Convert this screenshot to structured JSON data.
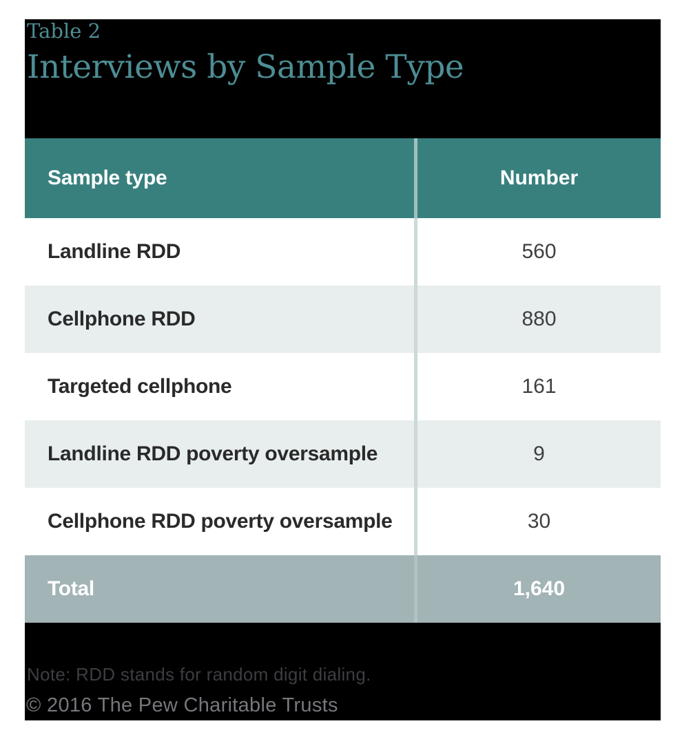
{
  "title": {
    "table_label": "Table 2",
    "heading": "Interviews by Sample Type"
  },
  "table": {
    "columns": {
      "sample_type": "Sample type",
      "number": "Number"
    },
    "rows": [
      {
        "label": "Landline RDD",
        "number": "560"
      },
      {
        "label": "Cellphone RDD",
        "number": "880"
      },
      {
        "label": "Targeted cellphone",
        "number": "161"
      },
      {
        "label": "Landline RDD poverty oversample",
        "number": "9"
      },
      {
        "label": "Cellphone RDD poverty oversample",
        "number": "30"
      }
    ],
    "total": {
      "label": "Total",
      "number": "1,640"
    }
  },
  "footer": {
    "note": "Note: RDD stands for random digit dialing.",
    "copyright": "© 2016 The Pew Charitable Trusts"
  },
  "colors": {
    "header_teal": "#38807e",
    "alt_row": "#e8eeee",
    "total_row": "#a2b4b5",
    "title_teal": "#4d8d94",
    "panel_background": "#000000",
    "column_divider": "#ccd9d9"
  },
  "chart_data": {
    "type": "table",
    "title": "Interviews by Sample Type",
    "table_number": "Table 2",
    "columns": [
      "Sample type",
      "Number"
    ],
    "categories": [
      "Landline RDD",
      "Cellphone RDD",
      "Targeted cellphone",
      "Landline RDD poverty oversample",
      "Cellphone RDD poverty oversample"
    ],
    "values": [
      560,
      880,
      161,
      9,
      30
    ],
    "total": 1640,
    "note": "Note: RDD stands for random digit dialing.",
    "source": "© 2016 The Pew Charitable Trusts"
  }
}
